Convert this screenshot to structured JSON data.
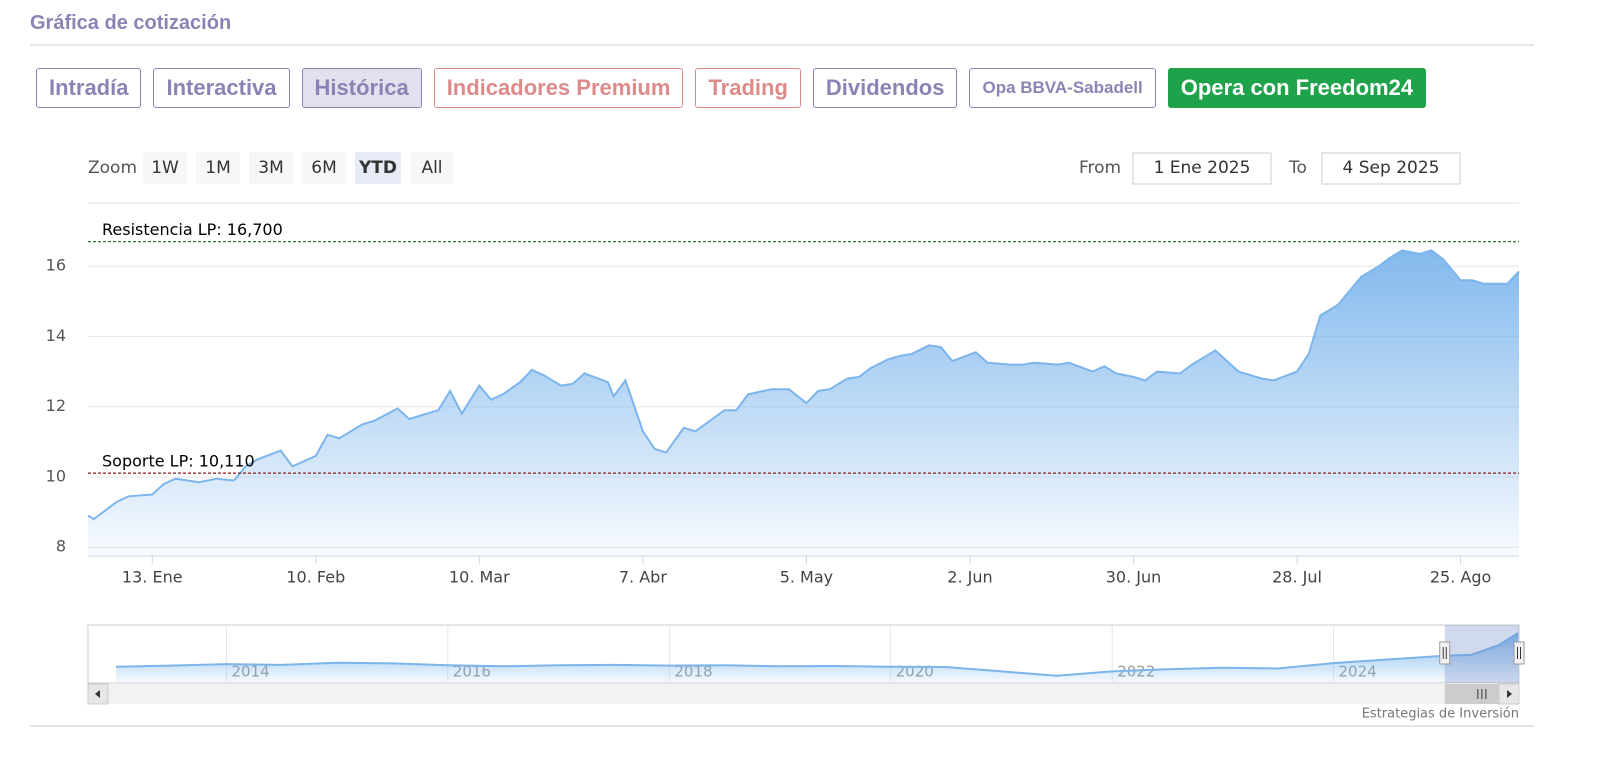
{
  "header": {
    "title": "Gráfica de cotización"
  },
  "tabs": [
    {
      "label": "Intradía",
      "color": "#8a84b4",
      "background": "#ffffff",
      "border": "#8a84b4"
    },
    {
      "label": "Interactiva",
      "color": "#8a84b4",
      "background": "#ffffff",
      "border": "#8a84b4"
    },
    {
      "label": "Histórica",
      "color": "#8a84b4",
      "background": "#e2e1ee",
      "border": "#8a84b4"
    },
    {
      "label": "Indicadores Premium",
      "color": "#dc8a8a",
      "background": "#ffffff",
      "border": "#dc8a8a"
    },
    {
      "label": "Trading",
      "color": "#dc8a8a",
      "background": "#ffffff",
      "border": "#dc8a8a"
    },
    {
      "label": "Dividendos",
      "color": "#8a84b4",
      "background": "#ffffff",
      "border": "#8a84b4"
    },
    {
      "label": "Opa BBVA-Sabadell",
      "color": "#8a84b4",
      "background": "#ffffff",
      "border": "#8a84b4",
      "small": true
    },
    {
      "label": "Opera con Freedom24",
      "color": "#ffffff",
      "background": "#1fa34a",
      "border": "#1fa34a"
    }
  ],
  "zoom": {
    "label": "Zoom",
    "buttons": [
      "1W",
      "1M",
      "3M",
      "6M",
      "YTD",
      "All"
    ],
    "selected": 4
  },
  "range": {
    "from_label": "From",
    "from": "1 Ene 2025",
    "to_label": "To",
    "to": "4 Sep 2025"
  },
  "footer": {
    "credit": "Estrategias de Inversión"
  },
  "chart_data": [
    {
      "type": "area",
      "color": "#7cb5ec",
      "x": [
        "2025-01-02",
        "2025-01-03",
        "2025-01-07",
        "2025-01-09",
        "2025-01-13",
        "2025-01-15",
        "2025-01-17",
        "2025-01-21",
        "2025-01-24",
        "2025-01-27",
        "2025-01-29",
        "2025-01-31",
        "2025-02-04",
        "2025-02-06",
        "2025-02-10",
        "2025-02-12",
        "2025-02-14",
        "2025-02-18",
        "2025-02-20",
        "2025-02-24",
        "2025-02-26",
        "2025-03-03",
        "2025-03-05",
        "2025-03-07",
        "2025-03-10",
        "2025-03-12",
        "2025-03-14",
        "2025-03-17",
        "2025-03-19",
        "2025-03-21",
        "2025-03-24",
        "2025-03-26",
        "2025-03-28",
        "2025-04-01",
        "2025-04-02",
        "2025-04-04",
        "2025-04-07",
        "2025-04-09",
        "2025-04-11",
        "2025-04-14",
        "2025-04-16",
        "2025-04-21",
        "2025-04-23",
        "2025-04-25",
        "2025-04-29",
        "2025-05-02",
        "2025-05-05",
        "2025-05-07",
        "2025-05-09",
        "2025-05-12",
        "2025-05-14",
        "2025-05-16",
        "2025-05-19",
        "2025-05-21",
        "2025-05-23",
        "2025-05-26",
        "2025-05-28",
        "2025-05-30",
        "2025-06-03",
        "2025-06-05",
        "2025-06-09",
        "2025-06-11",
        "2025-06-13",
        "2025-06-17",
        "2025-06-19",
        "2025-06-23",
        "2025-06-25",
        "2025-06-27",
        "2025-06-30",
        "2025-07-02",
        "2025-07-04",
        "2025-07-08",
        "2025-07-10",
        "2025-07-14",
        "2025-07-16",
        "2025-07-18",
        "2025-07-22",
        "2025-07-24",
        "2025-07-28",
        "2025-07-30",
        "2025-08-01",
        "2025-08-04",
        "2025-08-06",
        "2025-08-08",
        "2025-08-11",
        "2025-08-13",
        "2025-08-15",
        "2025-08-18",
        "2025-08-20",
        "2025-08-22",
        "2025-08-25",
        "2025-08-27",
        "2025-08-29",
        "2025-09-02",
        "2025-09-04"
      ],
      "values": [
        8.9,
        8.8,
        9.3,
        9.45,
        9.5,
        9.8,
        9.95,
        9.85,
        9.95,
        9.9,
        10.3,
        10.5,
        10.75,
        10.3,
        10.6,
        11.2,
        11.1,
        11.5,
        11.6,
        11.95,
        11.65,
        11.9,
        12.45,
        11.8,
        12.6,
        12.2,
        12.35,
        12.7,
        13.05,
        12.9,
        12.6,
        12.65,
        12.95,
        12.7,
        12.3,
        12.75,
        11.3,
        10.8,
        10.7,
        11.4,
        11.3,
        11.9,
        11.9,
        12.35,
        12.5,
        12.5,
        12.1,
        12.45,
        12.5,
        12.8,
        12.85,
        13.1,
        13.35,
        13.45,
        13.5,
        13.75,
        13.7,
        13.3,
        13.55,
        13.25,
        13.2,
        13.2,
        13.25,
        13.2,
        13.25,
        13.0,
        13.15,
        12.95,
        12.85,
        12.75,
        13.0,
        12.95,
        13.2,
        13.6,
        13.3,
        13.0,
        12.8,
        12.75,
        13.0,
        13.5,
        14.6,
        14.9,
        15.3,
        15.7,
        16.0,
        16.25,
        16.45,
        16.35,
        16.45,
        16.2,
        15.6,
        15.6,
        15.5,
        15.5,
        15.85
      ],
      "xlim": [
        "2025-01-02",
        "2025-09-04"
      ],
      "xticks": [
        {
          "value": "2025-01-13",
          "label": "13. Ene"
        },
        {
          "value": "2025-02-10",
          "label": "10. Feb"
        },
        {
          "value": "2025-03-10",
          "label": "10. Mar"
        },
        {
          "value": "2025-04-07",
          "label": "7. Abr"
        },
        {
          "value": "2025-05-05",
          "label": "5. May"
        },
        {
          "value": "2025-06-02",
          "label": "2. Jun"
        },
        {
          "value": "2025-06-30",
          "label": "30. Jun"
        },
        {
          "value": "2025-07-28",
          "label": "28. Jul"
        },
        {
          "value": "2025-08-25",
          "label": "25. Ago"
        }
      ],
      "ylim": [
        7.75,
        17.8
      ],
      "yticks": [
        8,
        10,
        12,
        14,
        16
      ],
      "grid": true,
      "plot_lines": [
        {
          "value": 16.7,
          "label": "Resistencia LP: 16,700",
          "color": "#2e7d32"
        },
        {
          "value": 10.11,
          "label": "Soporte LP: 10,110",
          "color": "#8b1a1a"
        }
      ]
    },
    {
      "type": "area",
      "color": "#7cb5ec",
      "x": [
        "2013-01-01",
        "2013-07-01",
        "2014-01-01",
        "2014-07-01",
        "2015-01-01",
        "2015-07-01",
        "2016-01-01",
        "2016-07-01",
        "2017-01-01",
        "2017-07-01",
        "2018-01-01",
        "2018-07-01",
        "2019-01-01",
        "2019-07-01",
        "2020-01-01",
        "2020-07-01",
        "2021-01-01",
        "2021-07-01",
        "2022-01-01",
        "2022-07-01",
        "2023-01-01",
        "2023-07-01",
        "2024-01-01",
        "2024-07-01",
        "2025-01-01",
        "2025-04-01",
        "2025-07-01",
        "2025-09-01"
      ],
      "values": [
        6.5,
        6.8,
        7.2,
        7.0,
        7.6,
        7.4,
        6.9,
        6.6,
        6.9,
        7.0,
        6.8,
        6.9,
        6.6,
        6.7,
        6.5,
        6.4,
        5.2,
        4.0,
        5.2,
        5.8,
        6.2,
        6.0,
        7.5,
        8.5,
        9.5,
        9.8,
        12.5,
        15.8
      ],
      "xlim": [
        "2012-10-01",
        "2025-09-04"
      ],
      "ylim": [
        2,
        18
      ],
      "xticks": [
        {
          "value": "2014-01-01",
          "label": "2014"
        },
        {
          "value": "2016-01-01",
          "label": "2016"
        },
        {
          "value": "2018-01-01",
          "label": "2018"
        },
        {
          "value": "2020-01-01",
          "label": "2020"
        },
        {
          "value": "2022-01-01",
          "label": "2022"
        },
        {
          "value": "2024-01-01",
          "label": "2024"
        }
      ]
    }
  ]
}
